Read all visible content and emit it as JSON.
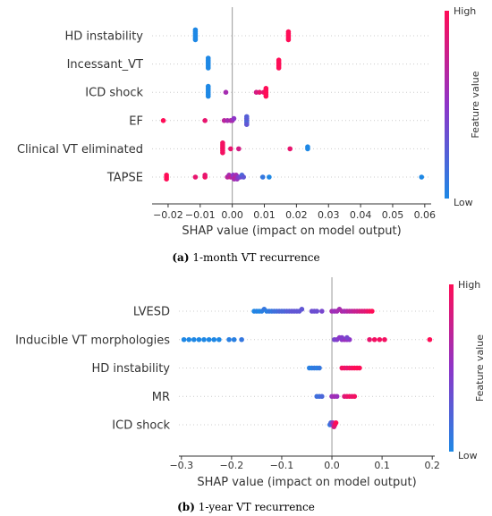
{
  "colors": {
    "low": "#1E88E5",
    "mid": "#8E35C8",
    "high": "#FF0D57",
    "axis": "#333333",
    "zero": "#999999",
    "grid": "#cccccc"
  },
  "chart_data": [
    {
      "type": "scatter",
      "subtype": "shap-beeswarm",
      "caption_label": "(a)",
      "caption_text": " 1-month VT recurrence",
      "xlabel": "SHAP value (impact on model output)",
      "xlim": [
        -0.025,
        0.062
      ],
      "xticks": [
        -0.02,
        -0.01,
        0.0,
        0.01,
        0.02,
        0.03,
        0.04,
        0.05,
        0.06
      ],
      "xtick_labels": [
        "−0.02",
        "−0.01",
        "0.00",
        "0.01",
        "0.02",
        "0.03",
        "0.04",
        "0.05",
        "0.06"
      ],
      "colorbar": {
        "high": "High",
        "low": "Low",
        "title": "Feature value"
      },
      "features": [
        {
          "name": "HD instability",
          "points": [
            [
              -0.0115,
              0.0
            ],
            [
              -0.0115,
              0.0
            ],
            [
              -0.0115,
              0.0
            ],
            [
              -0.0115,
              0.0
            ],
            [
              -0.0115,
              0.0
            ],
            [
              -0.0115,
              0.0
            ],
            [
              0.0175,
              1.0
            ],
            [
              0.0175,
              1.0
            ],
            [
              0.0175,
              1.0
            ],
            [
              0.0175,
              1.0
            ],
            [
              0.0175,
              1.0
            ]
          ]
        },
        {
          "name": "Incessant_VT",
          "points": [
            [
              -0.0075,
              0.0
            ],
            [
              -0.0075,
              0.0
            ],
            [
              -0.0075,
              0.0
            ],
            [
              -0.0075,
              0.0
            ],
            [
              -0.0075,
              0.0
            ],
            [
              -0.0075,
              0.0
            ],
            [
              0.0145,
              1.0
            ],
            [
              0.0145,
              1.0
            ],
            [
              0.0145,
              1.0
            ],
            [
              0.0145,
              1.0
            ],
            [
              0.0145,
              1.0
            ]
          ]
        },
        {
          "name": "ICD shock",
          "points": [
            [
              -0.0075,
              0.0
            ],
            [
              -0.0075,
              0.0
            ],
            [
              -0.0075,
              0.0
            ],
            [
              -0.0075,
              0.0
            ],
            [
              -0.0075,
              0.0
            ],
            [
              -0.0075,
              0.0
            ],
            [
              -0.002,
              0.6
            ],
            [
              0.0075,
              0.8
            ],
            [
              0.0085,
              0.9
            ],
            [
              0.0098,
              0.9
            ],
            [
              0.0105,
              1.0
            ],
            [
              0.0105,
              1.0
            ],
            [
              0.0105,
              1.0
            ],
            [
              0.0105,
              1.0
            ],
            [
              0.0105,
              1.0
            ]
          ]
        },
        {
          "name": "EF",
          "points": [
            [
              -0.0215,
              1.0
            ],
            [
              -0.0085,
              0.9
            ],
            [
              -0.0025,
              0.7
            ],
            [
              -0.0015,
              0.6
            ],
            [
              -0.0005,
              0.65
            ],
            [
              0.0,
              0.6
            ],
            [
              0.0005,
              0.5
            ],
            [
              0.0045,
              0.2
            ],
            [
              0.0045,
              0.3
            ],
            [
              0.0045,
              0.2
            ],
            [
              0.0045,
              0.25
            ],
            [
              0.0045,
              0.3
            ]
          ]
        },
        {
          "name": "Clinical VT eliminated",
          "points": [
            [
              -0.003,
              0.95
            ],
            [
              -0.003,
              0.95
            ],
            [
              -0.003,
              0.95
            ],
            [
              -0.003,
              0.95
            ],
            [
              -0.003,
              0.95
            ],
            [
              -0.003,
              0.95
            ],
            [
              -0.0005,
              0.9
            ],
            [
              0.002,
              0.8
            ],
            [
              0.018,
              0.9
            ],
            [
              0.0235,
              0.0
            ],
            [
              0.0235,
              0.0
            ]
          ]
        },
        {
          "name": "TAPSE",
          "points": [
            [
              -0.0205,
              1.0
            ],
            [
              -0.0205,
              1.0
            ],
            [
              -0.0205,
              1.0
            ],
            [
              -0.0115,
              0.9
            ],
            [
              -0.0085,
              0.95
            ],
            [
              -0.0085,
              0.9
            ],
            [
              -0.0015,
              0.7
            ],
            [
              -0.001,
              0.6
            ],
            [
              -0.0005,
              0.75
            ],
            [
              0.0,
              0.65
            ],
            [
              0.0003,
              0.5
            ],
            [
              0.0006,
              0.6
            ],
            [
              0.0009,
              0.7
            ],
            [
              0.0012,
              0.6
            ],
            [
              0.0015,
              0.55
            ],
            [
              0.002,
              0.45
            ],
            [
              0.0025,
              0.4
            ],
            [
              0.003,
              0.2
            ],
            [
              0.0035,
              0.3
            ],
            [
              0.0095,
              0.1
            ],
            [
              0.0115,
              0.0
            ],
            [
              0.059,
              0.0
            ]
          ]
        }
      ]
    },
    {
      "type": "scatter",
      "subtype": "shap-beeswarm",
      "caption_label": "(b)",
      "caption_text": " 1-year VT recurrence",
      "xlabel": "SHAP value (impact on model output)",
      "xlim": [
        -0.305,
        0.205
      ],
      "xticks": [
        -0.3,
        -0.2,
        -0.1,
        0.0,
        0.1,
        0.2
      ],
      "xtick_labels": [
        "−0.3",
        "−0.2",
        "−0.1",
        "0.0",
        "0.1",
        "0.2"
      ],
      "colorbar": {
        "high": "High",
        "low": "Low",
        "title": "Feature value"
      },
      "features": [
        {
          "name": "LVESD",
          "points": [
            [
              -0.155,
              0.0
            ],
            [
              -0.15,
              0.05
            ],
            [
              -0.145,
              0.0
            ],
            [
              -0.14,
              0.05
            ],
            [
              -0.135,
              0.1
            ],
            [
              -0.13,
              0.05
            ],
            [
              -0.125,
              0.1
            ],
            [
              -0.12,
              0.1
            ],
            [
              -0.115,
              0.15
            ],
            [
              -0.11,
              0.15
            ],
            [
              -0.105,
              0.2
            ],
            [
              -0.1,
              0.2
            ],
            [
              -0.095,
              0.2
            ],
            [
              -0.09,
              0.25
            ],
            [
              -0.085,
              0.25
            ],
            [
              -0.08,
              0.3
            ],
            [
              -0.075,
              0.3
            ],
            [
              -0.07,
              0.3
            ],
            [
              -0.065,
              0.3
            ],
            [
              -0.06,
              0.3
            ],
            [
              -0.04,
              0.35
            ],
            [
              -0.035,
              0.35
            ],
            [
              -0.03,
              0.35
            ],
            [
              -0.02,
              0.4
            ],
            [
              0.0,
              0.6
            ],
            [
              0.005,
              0.55
            ],
            [
              0.01,
              0.6
            ],
            [
              0.015,
              0.6
            ],
            [
              0.02,
              0.65
            ],
            [
              0.025,
              0.6
            ],
            [
              0.03,
              0.65
            ],
            [
              0.035,
              0.7
            ],
            [
              0.04,
              0.7
            ],
            [
              0.045,
              0.75
            ],
            [
              0.05,
              0.75
            ],
            [
              0.055,
              0.8
            ],
            [
              0.06,
              0.85
            ],
            [
              0.065,
              0.85
            ],
            [
              0.07,
              0.9
            ],
            [
              0.075,
              0.95
            ],
            [
              0.08,
              1.0
            ]
          ]
        },
        {
          "name": "Inducible VT morphologies",
          "points": [
            [
              -0.295,
              0.0
            ],
            [
              -0.285,
              0.0
            ],
            [
              -0.275,
              0.0
            ],
            [
              -0.265,
              0.0
            ],
            [
              -0.255,
              0.0
            ],
            [
              -0.245,
              0.0
            ],
            [
              -0.235,
              0.0
            ],
            [
              -0.225,
              0.0
            ],
            [
              -0.205,
              0.05
            ],
            [
              -0.195,
              0.05
            ],
            [
              -0.18,
              0.1
            ],
            [
              0.005,
              0.4
            ],
            [
              0.01,
              0.45
            ],
            [
              0.015,
              0.5
            ],
            [
              0.02,
              0.5
            ],
            [
              0.025,
              0.55
            ],
            [
              0.03,
              0.55
            ],
            [
              0.035,
              0.5
            ],
            [
              0.03,
              0.4
            ],
            [
              0.02,
              0.45
            ],
            [
              0.075,
              0.9
            ],
            [
              0.085,
              0.95
            ],
            [
              0.095,
              0.95
            ],
            [
              0.105,
              0.95
            ],
            [
              0.195,
              1.0
            ]
          ]
        },
        {
          "name": "HD instability",
          "points": [
            [
              -0.045,
              0.05
            ],
            [
              -0.04,
              0.05
            ],
            [
              -0.035,
              0.1
            ],
            [
              -0.03,
              0.05
            ],
            [
              -0.025,
              0.1
            ],
            [
              0.02,
              0.95
            ],
            [
              0.025,
              0.95
            ],
            [
              0.03,
              0.9
            ],
            [
              0.035,
              0.95
            ],
            [
              0.04,
              0.95
            ],
            [
              0.045,
              1.0
            ],
            [
              0.05,
              1.0
            ],
            [
              0.055,
              1.0
            ]
          ]
        },
        {
          "name": "MR",
          "points": [
            [
              -0.03,
              0.15
            ],
            [
              -0.025,
              0.15
            ],
            [
              -0.02,
              0.2
            ],
            [
              0.0,
              0.55
            ],
            [
              0.005,
              0.6
            ],
            [
              0.01,
              0.55
            ],
            [
              0.025,
              0.85
            ],
            [
              0.03,
              0.9
            ],
            [
              0.035,
              0.95
            ],
            [
              0.04,
              0.9
            ],
            [
              0.045,
              0.95
            ]
          ]
        },
        {
          "name": "ICD shock",
          "points": [
            [
              -0.004,
              0.1
            ],
            [
              -0.002,
              0.2
            ],
            [
              0.0,
              0.3
            ],
            [
              0.002,
              0.6
            ],
            [
              0.004,
              0.8
            ],
            [
              0.006,
              0.9
            ],
            [
              0.008,
              1.0
            ]
          ]
        }
      ]
    }
  ]
}
